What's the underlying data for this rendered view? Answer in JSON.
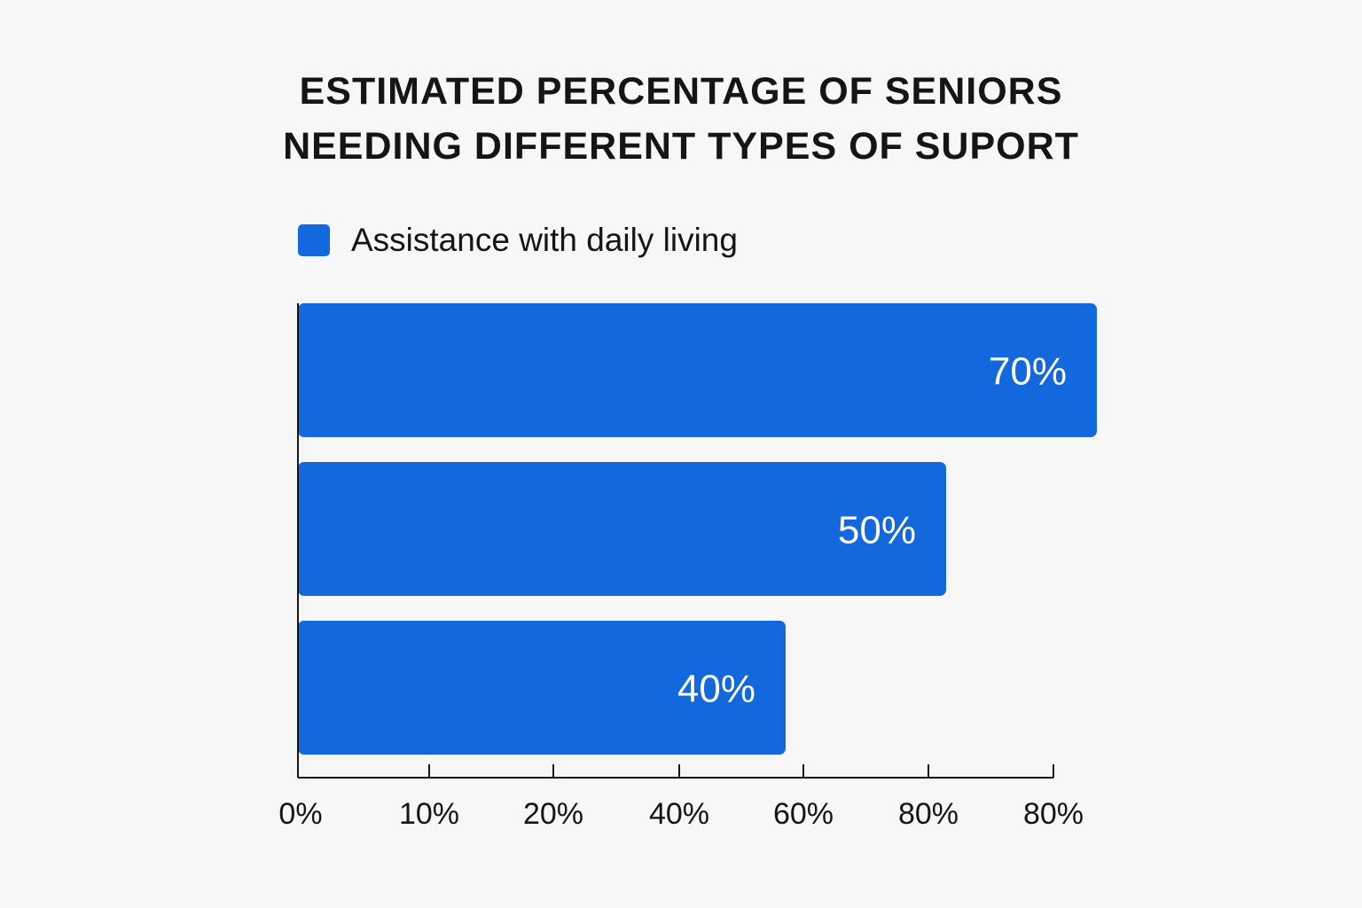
{
  "chart_data": {
    "type": "bar",
    "orientation": "horizontal",
    "title": "ESTIMATED PERCENTAGE OF SENIORS NEEDING DIFFERENT TYPES OF SUPORT",
    "title_lines": [
      "ESTIMATED PERCENTAGE OF SENIORS",
      "NEEDING DIFFERENT TYPES OF SUPORT"
    ],
    "series": [
      {
        "name": "Assistance with daily living",
        "color": "#1268dc",
        "values": [
          70,
          50,
          40
        ],
        "labels": [
          "70%",
          "50%",
          "40%"
        ]
      }
    ],
    "x_tick_labels": [
      "0%",
      "10%",
      "20%",
      "40%",
      "60%",
      "80%",
      "80%"
    ],
    "legend_position": "top-left",
    "grid": false,
    "xlabel": "",
    "ylabel": ""
  }
}
